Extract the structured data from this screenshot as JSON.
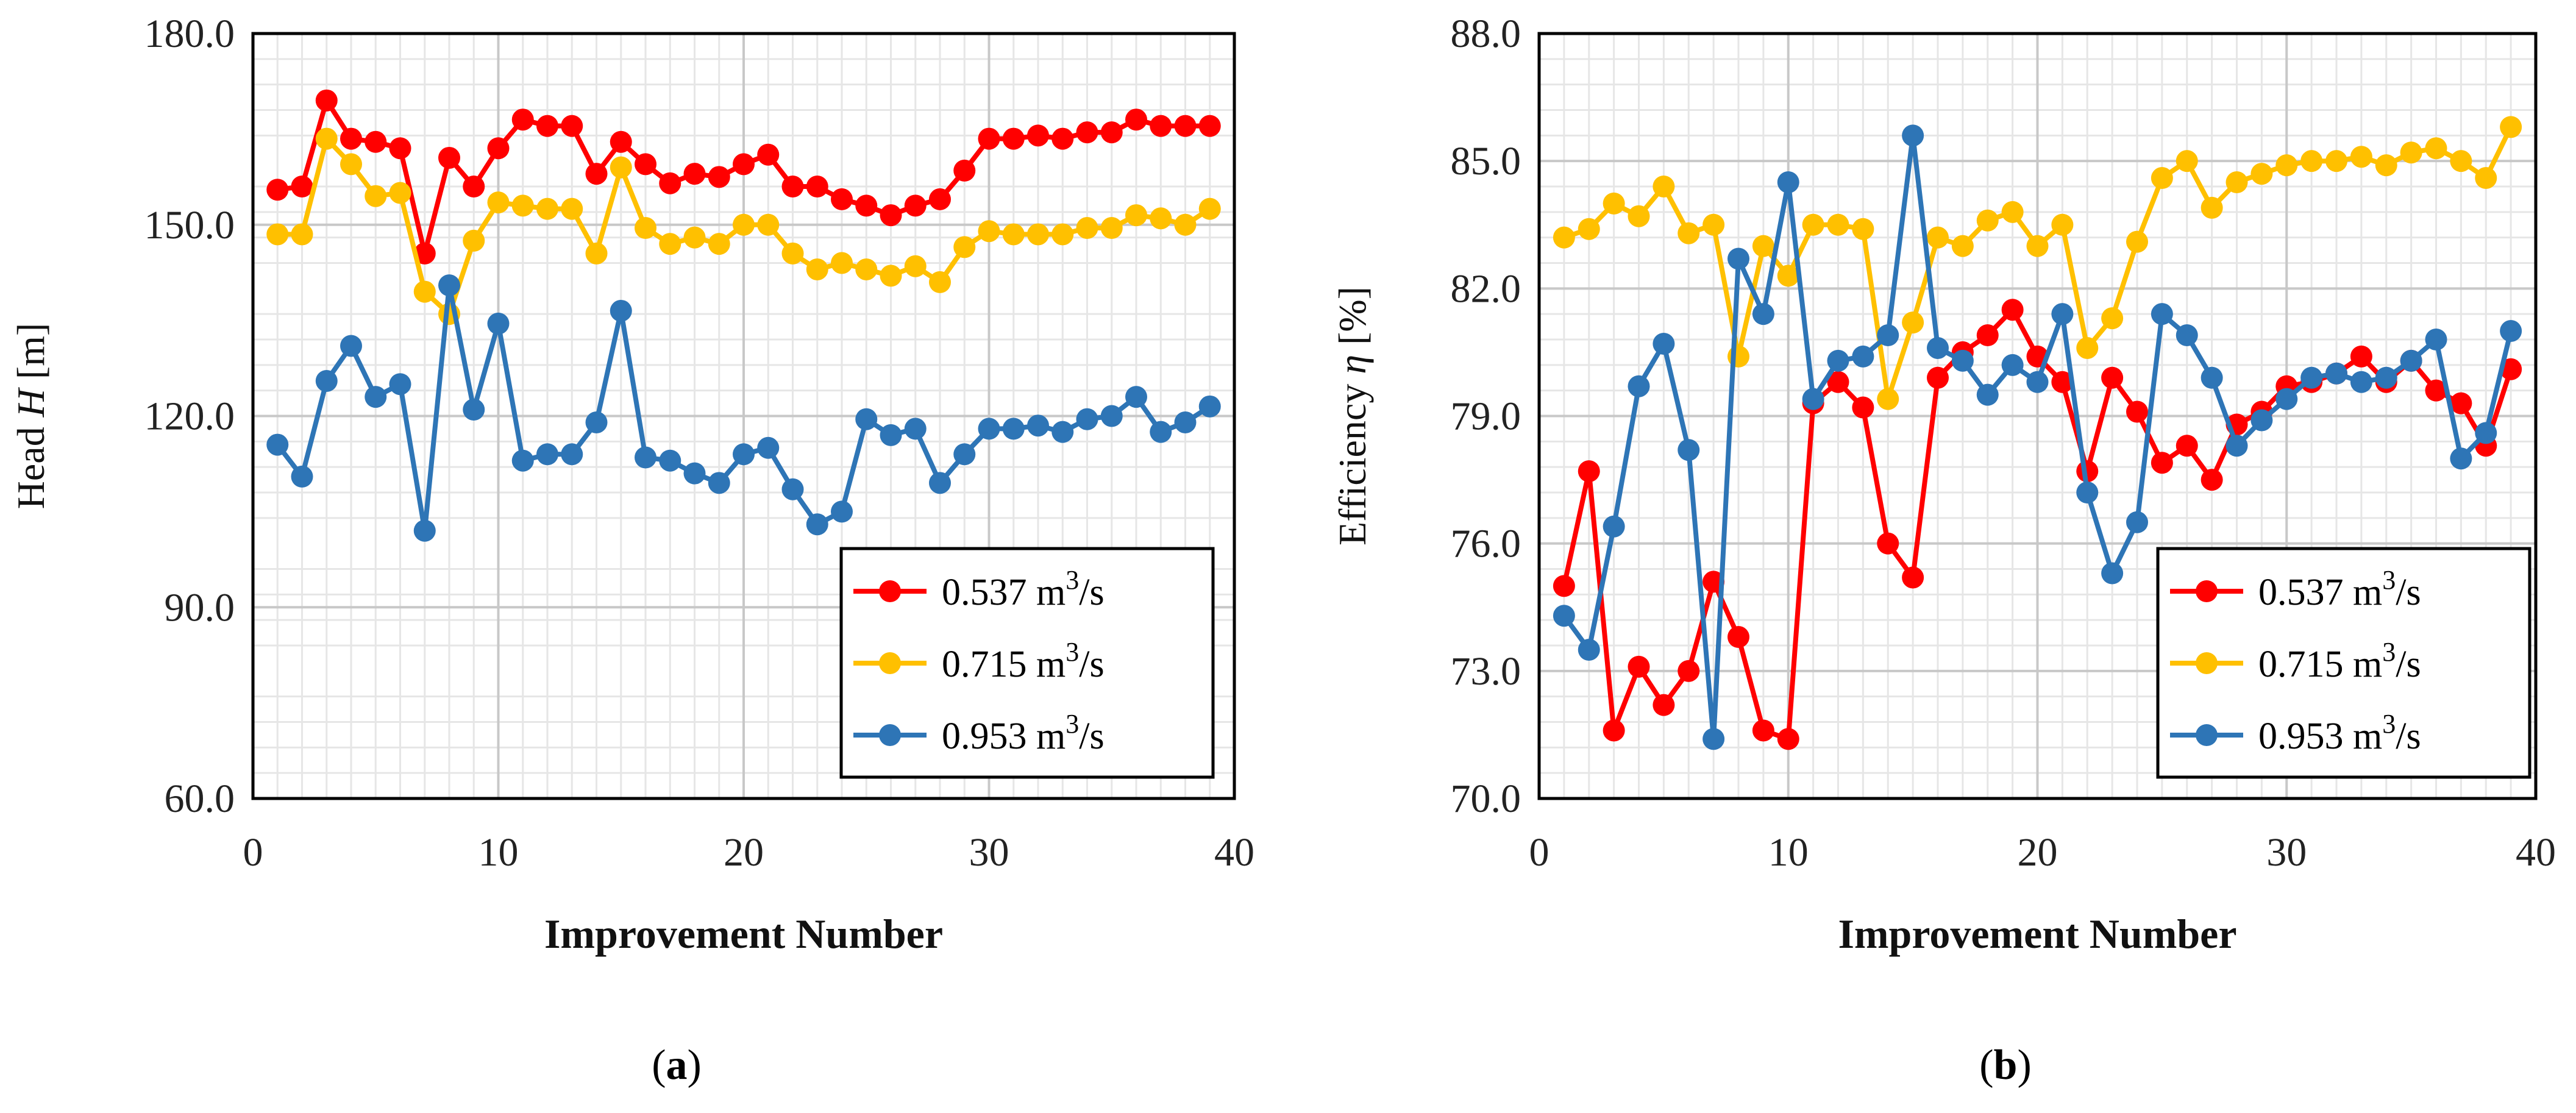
{
  "captions": {
    "a": "a",
    "b": "b"
  },
  "chart_data": [
    {
      "type": "line",
      "panel": "a",
      "xlabel": "Improvement Number",
      "ylabel": {
        "prefix": "Head ",
        "symbol": "H",
        "suffix": " [m]"
      },
      "xlim": [
        0,
        40
      ],
      "ylim": [
        60,
        180
      ],
      "xticks": [
        0,
        10,
        20,
        30,
        40
      ],
      "yticks": [
        60,
        90,
        120,
        150,
        180
      ],
      "ytick_labels": [
        "60.0",
        "90.0",
        "120.0",
        "150.0",
        "180.0"
      ],
      "grid": true,
      "legend_position": "bottom-right",
      "x": [
        1,
        2,
        3,
        4,
        5,
        6,
        7,
        8,
        9,
        10,
        11,
        12,
        13,
        14,
        15,
        16,
        17,
        18,
        19,
        20,
        21,
        22,
        23,
        24,
        25,
        26,
        27,
        28,
        29,
        30,
        31,
        32,
        33,
        34,
        35,
        36,
        37,
        38,
        39
      ],
      "series": [
        {
          "name_base": "0.537 m",
          "name_sup": "3",
          "name_tail": "/s",
          "color": "#ff0000",
          "values": [
            155.5,
            156.0,
            169.5,
            163.5,
            163.0,
            162.0,
            145.5,
            160.5,
            156.0,
            162.0,
            166.5,
            165.5,
            165.5,
            158.0,
            163.0,
            159.5,
            156.5,
            158.0,
            157.5,
            159.5,
            161.0,
            156.0,
            156.0,
            154.0,
            153.0,
            151.5,
            153.0,
            154.0,
            158.5,
            163.5,
            163.5,
            164.0,
            163.5,
            164.5,
            164.5,
            166.5,
            165.5,
            165.5,
            165.5
          ]
        },
        {
          "name_base": "0.715 m",
          "name_sup": "3",
          "name_tail": "/s",
          "color": "#ffc000",
          "values": [
            148.5,
            148.5,
            163.5,
            159.5,
            154.5,
            155.0,
            139.5,
            136.0,
            147.5,
            153.5,
            153.0,
            152.5,
            152.5,
            145.5,
            159.0,
            149.5,
            147.0,
            148.0,
            147.0,
            150.0,
            150.0,
            145.5,
            143.0,
            144.0,
            143.0,
            142.0,
            143.5,
            141.0,
            146.5,
            149.0,
            148.5,
            148.5,
            148.5,
            149.5,
            149.5,
            151.5,
            151.0,
            150.0,
            152.5
          ]
        },
        {
          "name_base": "0.953 m",
          "name_sup": "3",
          "name_tail": "/s",
          "color": "#2e75b6",
          "values": [
            115.5,
            110.5,
            125.5,
            131.0,
            123.0,
            125.0,
            102.0,
            140.5,
            121.0,
            134.5,
            113.0,
            114.0,
            114.0,
            119.0,
            136.5,
            113.5,
            113.0,
            111.0,
            109.5,
            114.0,
            115.0,
            108.5,
            103.0,
            105.0,
            119.5,
            117.0,
            118.0,
            109.5,
            114.0,
            118.0,
            118.0,
            118.5,
            117.5,
            119.5,
            120.0,
            123.0,
            117.5,
            119.0,
            121.5
          ]
        }
      ]
    },
    {
      "type": "line",
      "panel": "b",
      "xlabel": "Improvement Number",
      "ylabel": {
        "prefix": "Efficiency ",
        "symbol": "η",
        "suffix": " [%]"
      },
      "xlim": [
        0,
        40
      ],
      "ylim": [
        70,
        88
      ],
      "xticks": [
        0,
        10,
        20,
        30,
        40
      ],
      "yticks": [
        70,
        73,
        76,
        79,
        82,
        85,
        88
      ],
      "ytick_labels": [
        "70.0",
        "73.0",
        "76.0",
        "79.0",
        "82.0",
        "85.0",
        "88.0"
      ],
      "grid": true,
      "legend_position": "bottom-right",
      "x": [
        1,
        2,
        3,
        4,
        5,
        6,
        7,
        8,
        9,
        10,
        11,
        12,
        13,
        14,
        15,
        16,
        17,
        18,
        19,
        20,
        21,
        22,
        23,
        24,
        25,
        26,
        27,
        28,
        29,
        30,
        31,
        32,
        33,
        34,
        35,
        36,
        37,
        38,
        39
      ],
      "series": [
        {
          "name_base": "0.537 m",
          "name_sup": "3",
          "name_tail": "/s",
          "color": "#ff0000",
          "values": [
            75.0,
            77.7,
            71.6,
            73.1,
            72.2,
            73.0,
            75.1,
            73.8,
            71.6,
            71.4,
            79.3,
            79.8,
            79.2,
            76.0,
            75.2,
            79.9,
            80.5,
            80.9,
            81.5,
            80.4,
            79.8,
            77.7,
            79.9,
            79.1,
            77.9,
            78.3,
            77.5,
            78.8,
            79.1,
            79.7,
            79.8,
            80.0,
            80.4,
            79.8,
            80.3,
            79.6,
            79.3,
            78.3,
            80.1
          ]
        },
        {
          "name_base": "0.715 m",
          "name_sup": "3",
          "name_tail": "/s",
          "color": "#ffc000",
          "values": [
            83.2,
            83.4,
            84.0,
            83.7,
            84.4,
            83.3,
            83.5,
            80.4,
            83.0,
            82.3,
            83.5,
            83.5,
            83.4,
            79.4,
            81.2,
            83.2,
            83.0,
            83.6,
            83.8,
            83.0,
            83.5,
            80.6,
            81.3,
            83.1,
            84.6,
            85.0,
            83.9,
            84.5,
            84.7,
            84.9,
            85.0,
            85.0,
            85.1,
            84.9,
            85.2,
            85.3,
            85.0,
            84.6,
            85.8
          ]
        },
        {
          "name_base": "0.953 m",
          "name_sup": "3",
          "name_tail": "/s",
          "color": "#2e75b6",
          "values": [
            74.3,
            73.5,
            76.4,
            79.7,
            80.7,
            78.2,
            71.4,
            82.7,
            81.4,
            84.5,
            79.4,
            80.3,
            80.4,
            80.9,
            85.6,
            80.6,
            80.3,
            79.5,
            80.2,
            79.8,
            81.4,
            77.2,
            75.3,
            76.5,
            81.4,
            80.9,
            79.9,
            78.3,
            78.9,
            79.4,
            79.9,
            80.0,
            79.8,
            79.9,
            80.3,
            80.8,
            78.0,
            78.6,
            81.0
          ]
        }
      ]
    }
  ]
}
